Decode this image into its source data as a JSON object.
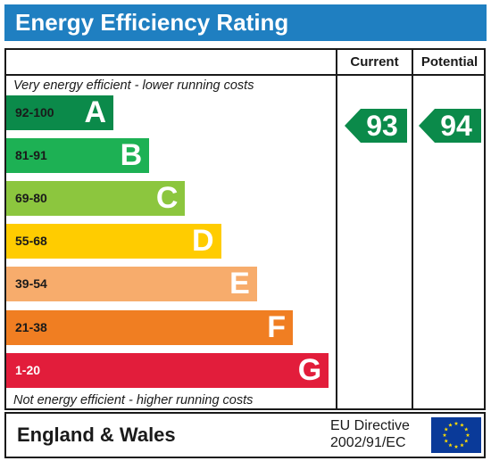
{
  "header": {
    "title": "Energy Efficiency Rating"
  },
  "columns": {
    "current": "Current",
    "potential": "Potential"
  },
  "notes": {
    "top": "Very energy efficient - lower running costs",
    "bottom": "Not energy efficient - higher running costs"
  },
  "chart_data": {
    "type": "bar",
    "title": "Energy Efficiency Rating",
    "categories": [
      "A",
      "B",
      "C",
      "D",
      "E",
      "F",
      "G"
    ],
    "ranges": [
      "92-100",
      "81-91",
      "69-80",
      "55-68",
      "39-54",
      "21-38",
      "1-20"
    ],
    "colors": [
      "#0b8a4a",
      "#1db154",
      "#8cc63e",
      "#ffcc00",
      "#f7ac6c",
      "#f07e22",
      "#e21d3b"
    ],
    "current": {
      "value": 93,
      "band": "A"
    },
    "potential": {
      "value": 94,
      "band": "A"
    }
  },
  "footer": {
    "region": "England & Wales",
    "directive_line1": "EU Directive",
    "directive_line2": "2002/91/EC"
  },
  "icons": {
    "flag": "eu-flag-icon"
  }
}
